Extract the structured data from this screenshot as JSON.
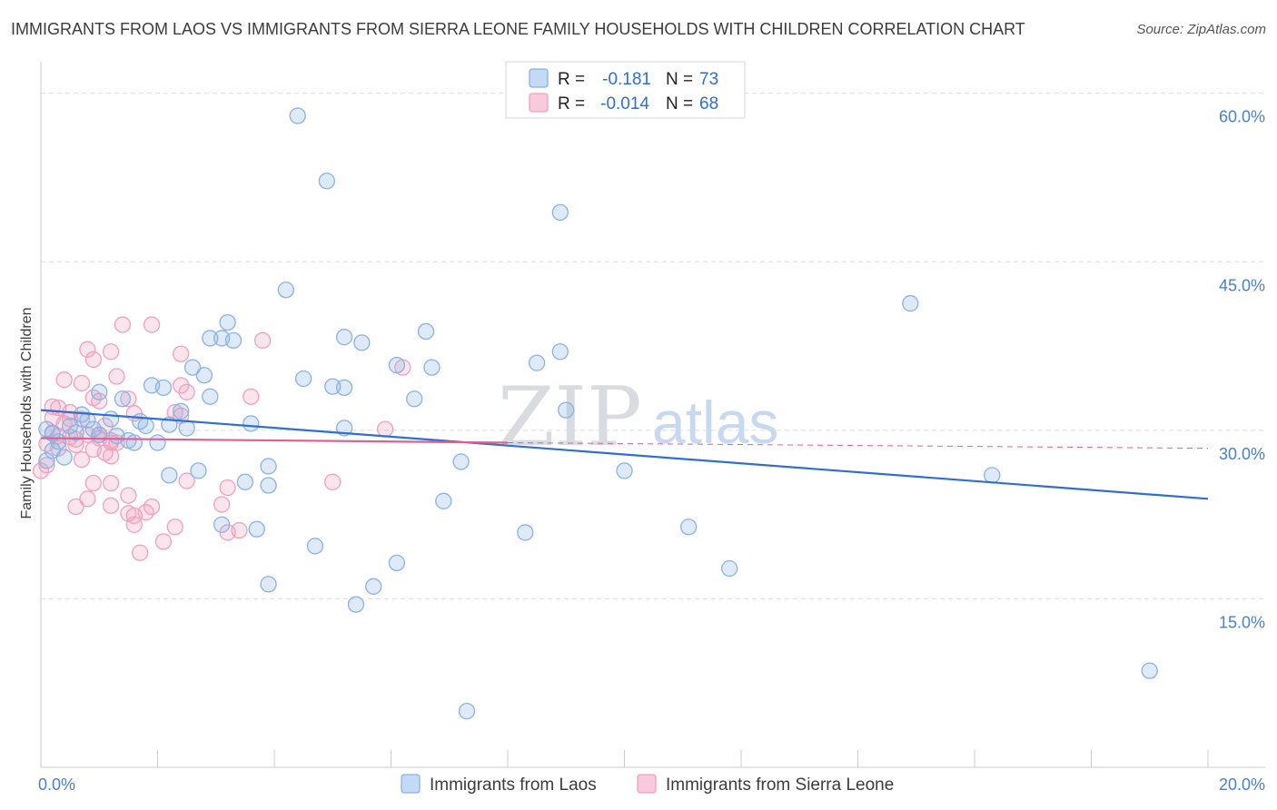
{
  "title": "IMMIGRANTS FROM LAOS VS IMMIGRANTS FROM SIERRA LEONE FAMILY HOUSEHOLDS WITH CHILDREN CORRELATION CHART",
  "source": "Source: ZipAtlas.com",
  "watermark": {
    "part1": "ZIP",
    "part2": "atlas"
  },
  "colors": {
    "laos": "#8ab2e6",
    "laos_line": "#2e6fd1",
    "sierra": "#f1a0bc",
    "sierra_line": "#e0608f",
    "tick": "#4a80d0"
  },
  "stats": [
    {
      "r_label": "R =",
      "r_value": "-0.181",
      "n_label": "N =",
      "n_value": "73"
    },
    {
      "r_label": "R =",
      "r_value": "-0.014",
      "n_label": "N =",
      "n_value": "68"
    }
  ],
  "chart_data": {
    "type": "scatter",
    "title": "IMMIGRANTS FROM LAOS VS IMMIGRANTS FROM SIERRA LEONE FAMILY HOUSEHOLDS WITH CHILDREN CORRELATION CHART",
    "xlabel": "",
    "ylabel": "Family Households with Children",
    "xlim": [
      0,
      20
    ],
    "ylim": [
      0,
      62
    ],
    "x_tick_labels": [
      "0.0%",
      "20.0%"
    ],
    "y_ticks": [
      15,
      30,
      45,
      60
    ],
    "y_tick_labels": [
      "15.0%",
      "30.0%",
      "45.0%",
      "60.0%"
    ],
    "legend": [
      "Immigrants from Laos",
      "Immigrants from Sierra Leone"
    ],
    "series": [
      {
        "name": "Immigrants from Laos",
        "r": -0.181,
        "n": 73,
        "trend": {
          "x": [
            0,
            20
          ],
          "y": [
            31.8,
            23.9
          ]
        },
        "points": [
          [
            4.4,
            58.0
          ],
          [
            4.9,
            52.2
          ],
          [
            8.9,
            49.4
          ],
          [
            4.2,
            42.5
          ],
          [
            14.9,
            41.3
          ],
          [
            3.2,
            39.6
          ],
          [
            6.6,
            38.8
          ],
          [
            2.9,
            38.2
          ],
          [
            3.1,
            38.2
          ],
          [
            3.3,
            38.0
          ],
          [
            5.2,
            38.3
          ],
          [
            5.5,
            37.8
          ],
          [
            8.9,
            37.0
          ],
          [
            8.5,
            36.0
          ],
          [
            6.1,
            35.8
          ],
          [
            6.7,
            35.6
          ],
          [
            2.6,
            35.6
          ],
          [
            2.8,
            34.9
          ],
          [
            4.5,
            34.6
          ],
          [
            5.0,
            33.9
          ],
          [
            5.2,
            33.8
          ],
          [
            1.9,
            34.0
          ],
          [
            2.1,
            33.8
          ],
          [
            1.0,
            33.4
          ],
          [
            1.4,
            32.8
          ],
          [
            2.9,
            33.0
          ],
          [
            6.4,
            32.8
          ],
          [
            9.0,
            31.8
          ],
          [
            2.4,
            31.7
          ],
          [
            0.7,
            31.4
          ],
          [
            0.8,
            30.9
          ],
          [
            1.2,
            31.0
          ],
          [
            1.7,
            30.8
          ],
          [
            1.8,
            30.4
          ],
          [
            2.2,
            30.5
          ],
          [
            2.5,
            30.2
          ],
          [
            3.6,
            30.6
          ],
          [
            5.2,
            30.2
          ],
          [
            0.5,
            30.4
          ],
          [
            0.6,
            29.8
          ],
          [
            0.9,
            30.1
          ],
          [
            1.0,
            29.6
          ],
          [
            1.3,
            29.5
          ],
          [
            1.5,
            29.1
          ],
          [
            1.6,
            28.9
          ],
          [
            2.0,
            28.9
          ],
          [
            0.1,
            30.1
          ],
          [
            0.2,
            29.7
          ],
          [
            0.3,
            29.0
          ],
          [
            0.2,
            28.2
          ],
          [
            0.4,
            27.6
          ],
          [
            0.1,
            27.3
          ],
          [
            7.2,
            27.2
          ],
          [
            3.9,
            26.8
          ],
          [
            2.7,
            26.4
          ],
          [
            2.2,
            26.0
          ],
          [
            10.0,
            26.4
          ],
          [
            16.3,
            26.0
          ],
          [
            3.5,
            25.4
          ],
          [
            3.9,
            25.1
          ],
          [
            6.9,
            23.7
          ],
          [
            3.1,
            21.6
          ],
          [
            3.7,
            21.2
          ],
          [
            11.1,
            21.4
          ],
          [
            8.3,
            20.9
          ],
          [
            4.7,
            19.7
          ],
          [
            6.1,
            18.2
          ],
          [
            11.8,
            17.7
          ],
          [
            3.9,
            16.3
          ],
          [
            5.7,
            16.1
          ],
          [
            5.4,
            14.5
          ],
          [
            19.0,
            8.6
          ],
          [
            7.3,
            5.0
          ]
        ]
      },
      {
        "name": "Immigrants from Sierra Leone",
        "r": -0.014,
        "n": 68,
        "trend": {
          "x": [
            0,
            8.0
          ],
          "y": [
            29.3,
            28.9
          ],
          "dashed_to": {
            "x": 20,
            "y": 28.4
          }
        },
        "points": [
          [
            1.4,
            39.4
          ],
          [
            1.9,
            39.4
          ],
          [
            3.8,
            38.0
          ],
          [
            0.8,
            37.2
          ],
          [
            1.2,
            37.0
          ],
          [
            2.4,
            36.8
          ],
          [
            0.9,
            36.3
          ],
          [
            6.2,
            35.6
          ],
          [
            0.4,
            34.5
          ],
          [
            1.3,
            34.8
          ],
          [
            0.7,
            34.2
          ],
          [
            2.4,
            34.0
          ],
          [
            2.5,
            33.4
          ],
          [
            3.6,
            33.0
          ],
          [
            0.9,
            32.9
          ],
          [
            1.0,
            32.6
          ],
          [
            1.5,
            32.8
          ],
          [
            0.2,
            32.1
          ],
          [
            0.3,
            32.0
          ],
          [
            0.5,
            31.6
          ],
          [
            1.6,
            31.5
          ],
          [
            2.4,
            31.3
          ],
          [
            0.2,
            31.1
          ],
          [
            0.5,
            31.0
          ],
          [
            0.7,
            31.0
          ],
          [
            0.4,
            30.6
          ],
          [
            1.1,
            30.4
          ],
          [
            5.9,
            30.1
          ],
          [
            0.2,
            29.8
          ],
          [
            0.3,
            29.5
          ],
          [
            0.5,
            29.4
          ],
          [
            0.6,
            29.2
          ],
          [
            0.8,
            29.6
          ],
          [
            1.0,
            29.3
          ],
          [
            1.2,
            29.1
          ],
          [
            1.3,
            28.9
          ],
          [
            0.1,
            28.8
          ],
          [
            0.3,
            28.4
          ],
          [
            0.6,
            28.7
          ],
          [
            0.9,
            28.3
          ],
          [
            1.1,
            28.0
          ],
          [
            1.2,
            27.7
          ],
          [
            0.7,
            27.4
          ],
          [
            0.1,
            26.9
          ],
          [
            0.0,
            26.4
          ],
          [
            5.0,
            25.4
          ],
          [
            0.9,
            25.3
          ],
          [
            1.2,
            25.3
          ],
          [
            2.5,
            25.5
          ],
          [
            3.2,
            24.9
          ],
          [
            1.5,
            24.2
          ],
          [
            0.8,
            23.9
          ],
          [
            0.6,
            23.2
          ],
          [
            1.2,
            23.3
          ],
          [
            3.1,
            23.4
          ],
          [
            1.9,
            23.2
          ],
          [
            1.5,
            22.6
          ],
          [
            1.6,
            22.4
          ],
          [
            1.8,
            22.7
          ],
          [
            1.6,
            21.6
          ],
          [
            2.3,
            21.4
          ],
          [
            3.4,
            21.1
          ],
          [
            3.2,
            20.9
          ],
          [
            2.1,
            20.1
          ],
          [
            1.7,
            19.1
          ],
          [
            1.2,
            28.9
          ],
          [
            1.0,
            29.6
          ],
          [
            2.3,
            31.6
          ]
        ]
      }
    ]
  }
}
